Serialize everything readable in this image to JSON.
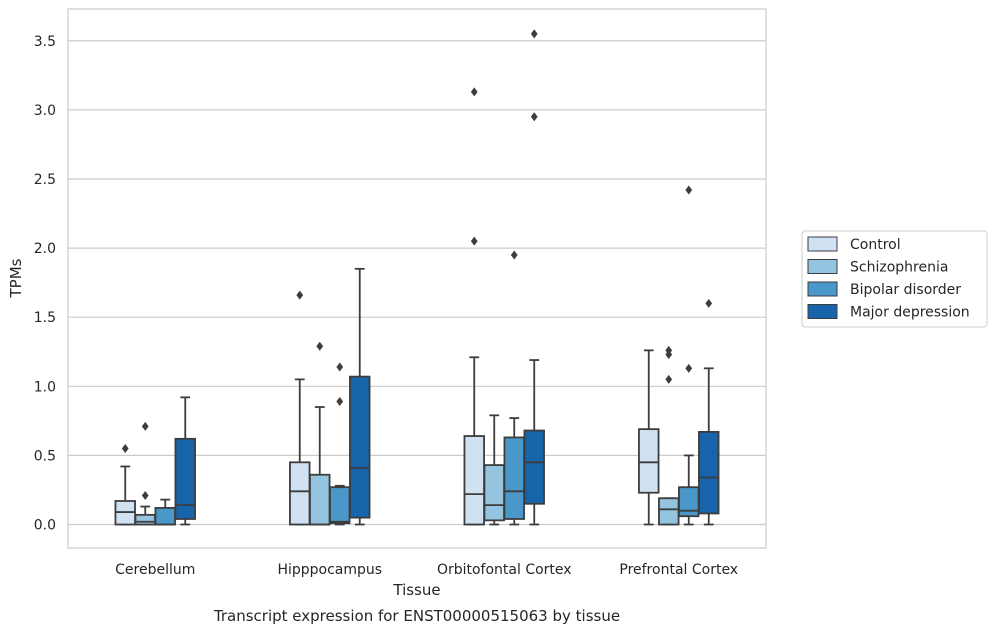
{
  "chart_data": {
    "type": "box",
    "title": "",
    "caption": "Transcript expression for ENST00000515063 by tissue",
    "xlabel": "Tissue",
    "ylabel": "TPMs",
    "ylim": [
      -0.17,
      3.73
    ],
    "yticks": [
      "0.0",
      "0.5",
      "1.0",
      "1.5",
      "2.0",
      "2.5",
      "3.0",
      "3.5"
    ],
    "grid": "horizontal",
    "legend_position": "right",
    "categories": [
      "Cerebellum",
      "Hipppocampus",
      "Orbitofontal Cortex",
      "Prefrontal Cortex"
    ],
    "series": [
      {
        "name": "Control",
        "color": "#d0e1f2",
        "boxes": [
          {
            "whislo": 0.0,
            "q1": 0.0,
            "med": 0.09,
            "q3": 0.17,
            "whishi": 0.42,
            "fliers": [
              0.55
            ]
          },
          {
            "whislo": 0.0,
            "q1": 0.0,
            "med": 0.24,
            "q3": 0.45,
            "whishi": 1.05,
            "fliers": [
              1.66
            ]
          },
          {
            "whislo": 0.0,
            "q1": 0.0,
            "med": 0.22,
            "q3": 0.64,
            "whishi": 1.21,
            "fliers": [
              2.05,
              3.13
            ]
          },
          {
            "whislo": 0.0,
            "q1": 0.23,
            "med": 0.45,
            "q3": 0.69,
            "whishi": 1.26,
            "fliers": []
          }
        ]
      },
      {
        "name": "Schizophrenia",
        "color": "#94c4df",
        "boxes": [
          {
            "whislo": 0.0,
            "q1": 0.0,
            "med": 0.02,
            "q3": 0.07,
            "whishi": 0.13,
            "fliers": [
              0.21,
              0.71
            ]
          },
          {
            "whislo": 0.0,
            "q1": 0.0,
            "med": 0.0,
            "q3": 0.36,
            "whishi": 0.85,
            "fliers": [
              1.29
            ]
          },
          {
            "whislo": 0.0,
            "q1": 0.03,
            "med": 0.14,
            "q3": 0.43,
            "whishi": 0.79,
            "fliers": []
          },
          {
            "whislo": 0.0,
            "q1": 0.0,
            "med": 0.11,
            "q3": 0.19,
            "whishi": 0.19,
            "fliers": [
              1.05,
              1.23,
              1.26
            ]
          }
        ]
      },
      {
        "name": "Bipolar disorder",
        "color": "#4a98c9",
        "boxes": [
          {
            "whislo": 0.0,
            "q1": 0.0,
            "med": 0.0,
            "q3": 0.12,
            "whishi": 0.18,
            "fliers": []
          },
          {
            "whislo": 0.0,
            "q1": 0.01,
            "med": 0.02,
            "q3": 0.27,
            "whishi": 0.28,
            "fliers": [
              0.89,
              1.14
            ]
          },
          {
            "whislo": 0.0,
            "q1": 0.04,
            "med": 0.24,
            "q3": 0.63,
            "whishi": 0.77,
            "fliers": [
              1.95
            ]
          },
          {
            "whislo": 0.0,
            "q1": 0.06,
            "med": 0.1,
            "q3": 0.27,
            "whishi": 0.5,
            "fliers": [
              1.13,
              2.42
            ]
          }
        ]
      },
      {
        "name": "Major depression",
        "color": "#1764ab",
        "boxes": [
          {
            "whislo": 0.0,
            "q1": 0.04,
            "med": 0.14,
            "q3": 0.62,
            "whishi": 0.92,
            "fliers": []
          },
          {
            "whislo": 0.0,
            "q1": 0.05,
            "med": 0.41,
            "q3": 1.07,
            "whishi": 1.85,
            "fliers": []
          },
          {
            "whislo": 0.0,
            "q1": 0.15,
            "med": 0.45,
            "q3": 0.68,
            "whishi": 1.19,
            "fliers": [
              2.95,
              3.55
            ]
          },
          {
            "whislo": 0.0,
            "q1": 0.08,
            "med": 0.34,
            "q3": 0.67,
            "whishi": 1.13,
            "fliers": [
              1.6
            ]
          }
        ]
      }
    ]
  }
}
